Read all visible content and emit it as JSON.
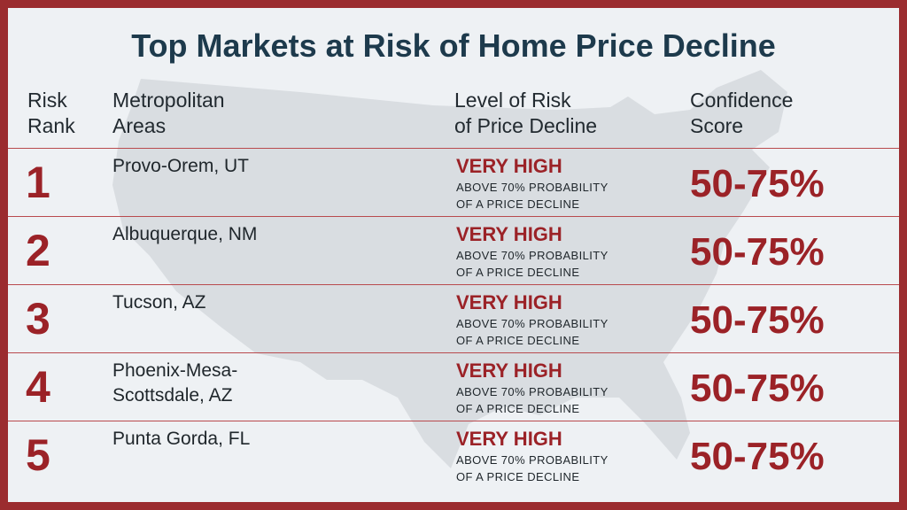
{
  "title": "Top Markets at Risk of Home Price Decline",
  "headers": {
    "rank": "Risk\nRank",
    "area": "Metropolitan\nAreas",
    "level": "Level of Risk\nof Price Decline",
    "score": "Confidence\nScore"
  },
  "rows": [
    {
      "rank": "1",
      "area": "Provo-Orem, UT",
      "level": "VERY HIGH",
      "desc": "ABOVE 70% PROBABILITY\nOF A PRICE DECLINE",
      "score": "50-75%"
    },
    {
      "rank": "2",
      "area": "Albuquerque, NM",
      "level": "VERY HIGH",
      "desc": "ABOVE 70% PROBABILITY\nOF A PRICE DECLINE",
      "score": "50-75%"
    },
    {
      "rank": "3",
      "area": "Tucson, AZ",
      "level": "VERY HIGH",
      "desc": "ABOVE 70% PROBABILITY\nOF A PRICE DECLINE",
      "score": "50-75%"
    },
    {
      "rank": "4",
      "area": "Phoenix-Mesa-\nScottsdale, AZ",
      "level": "VERY HIGH",
      "desc": "ABOVE 70% PROBABILITY\nOF A PRICE DECLINE",
      "score": "50-75%"
    },
    {
      "rank": "5",
      "area": "Punta Gorda, FL",
      "level": "VERY HIGH",
      "desc": "ABOVE 70% PROBABILITY\nOF A PRICE DECLINE",
      "score": "50-75%"
    }
  ],
  "colors": {
    "border": "#9b2c2f",
    "accent": "#9b2227",
    "title": "#1d3a4c",
    "background": "#eef1f4",
    "map": "#d9dde1"
  }
}
